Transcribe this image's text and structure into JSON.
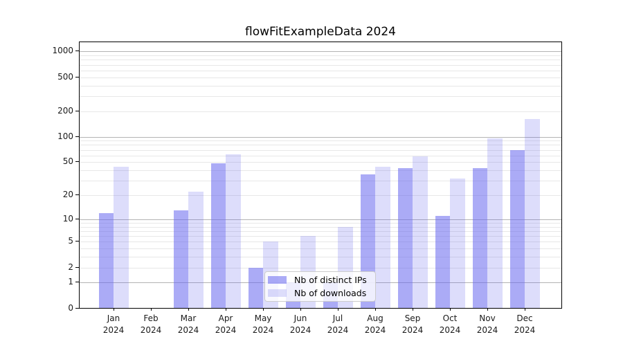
{
  "title": "flowFitExampleData 2024",
  "chart_data": {
    "type": "bar",
    "title": "flowFitExampleData 2024",
    "categories": [
      "Jan",
      "Feb",
      "Mar",
      "Apr",
      "May",
      "Jun",
      "Jul",
      "Aug",
      "Sep",
      "Oct",
      "Nov",
      "Dec"
    ],
    "category_year": "2024",
    "series": [
      {
        "name": "Nb of distinct IPs",
        "color": "rgba(102,102,238,0.55)",
        "values": [
          12,
          0,
          13,
          48,
          2,
          1,
          1,
          36,
          42,
          11,
          42,
          69
        ]
      },
      {
        "name": "Nb of downloads",
        "color": "rgba(102,102,238,0.22)",
        "values": [
          44,
          0,
          22,
          62,
          5,
          6,
          8,
          44,
          59,
          32,
          95,
          163
        ]
      }
    ],
    "y_ticks": [
      0,
      1,
      2,
      5,
      10,
      20,
      50,
      100,
      200,
      500,
      1000
    ],
    "y_tick_labels": [
      "0",
      "1",
      "2",
      "5",
      "10",
      "20",
      "50",
      "100",
      "200",
      "500",
      "1000"
    ],
    "scale": "log1p",
    "ylim": [
      0,
      1300
    ],
    "grid": true,
    "legend_position": "lower center",
    "colors": {
      "major_gridline": "#b3b3b3",
      "minor_gridline": "#e7e7e7",
      "axis": "#000000"
    }
  }
}
